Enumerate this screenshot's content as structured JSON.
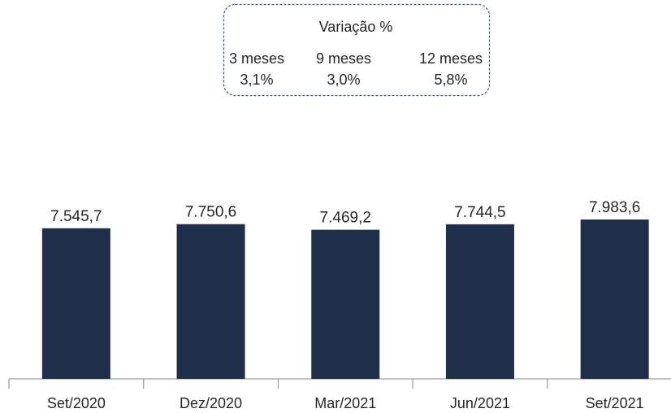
{
  "chart_data": {
    "type": "bar",
    "categories": [
      "Set/2020",
      "Dez/2020",
      "Mar/2021",
      "Jun/2021",
      "Set/2021"
    ],
    "values": [
      7545.7,
      7750.6,
      7469.2,
      7744.5,
      7983.6
    ],
    "value_labels": [
      "7.545,7",
      "7.750,6",
      "7.469,2",
      "7.744,5",
      "7.983,6"
    ],
    "color": "#1f2f4a",
    "ylim": [
      0,
      8000
    ],
    "annotation": {
      "title": "Variação %",
      "columns": [
        {
          "label": "3 meses",
          "value": "3,1%"
        },
        {
          "label": "9 meses",
          "value": "3,0%"
        },
        {
          "label": "12 meses",
          "value": "5,8%"
        }
      ]
    }
  }
}
